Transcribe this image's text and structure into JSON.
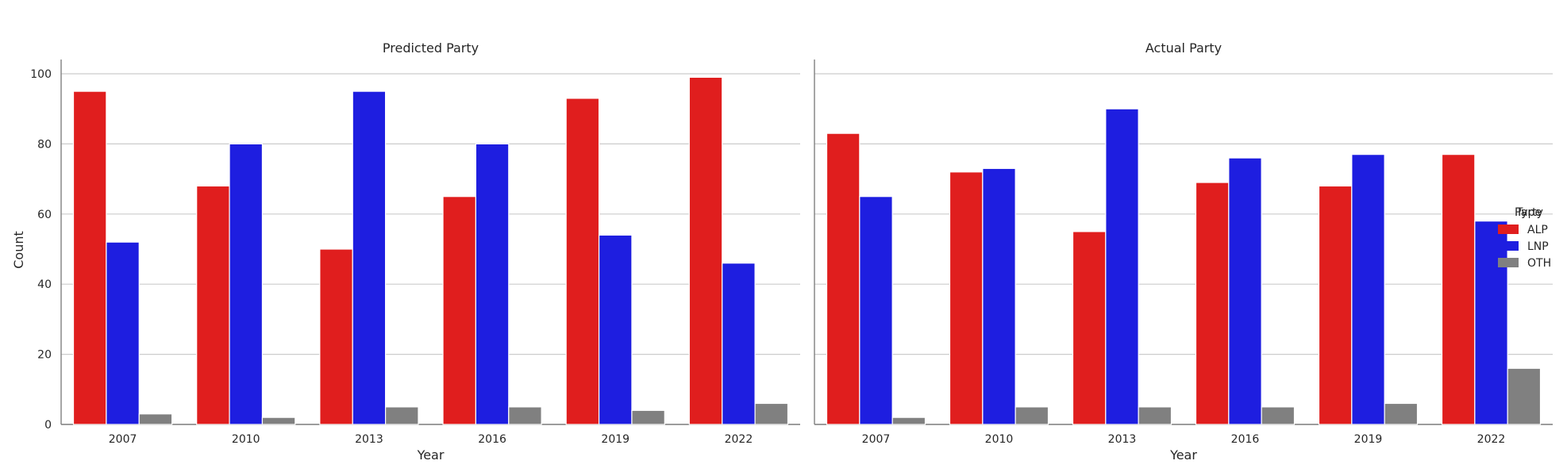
{
  "chart_data": [
    {
      "type": "bar",
      "title": "Predicted Party",
      "xlabel": "Year",
      "ylabel": "Count",
      "ylim": [
        0,
        100
      ],
      "yticks": [
        0,
        20,
        40,
        60,
        80,
        100
      ],
      "grid": "horizontal",
      "categories": [
        "2007",
        "2010",
        "2013",
        "2016",
        "2019",
        "2022"
      ],
      "series": [
        {
          "name": "ALP",
          "color": "#e01e1e",
          "values": [
            95,
            68,
            50,
            65,
            93,
            99
          ]
        },
        {
          "name": "LNP",
          "color": "#1e1ee0",
          "values": [
            52,
            80,
            95,
            80,
            54,
            46
          ]
        },
        {
          "name": "OTH",
          "color": "#808080",
          "values": [
            3,
            2,
            5,
            5,
            4,
            6
          ]
        }
      ]
    },
    {
      "type": "bar",
      "title": "Actual Party",
      "xlabel": "Year",
      "ylabel": "",
      "ylim": [
        0,
        100
      ],
      "yticks": [
        0,
        20,
        40,
        60,
        80,
        100
      ],
      "grid": "horizontal",
      "categories": [
        "2007",
        "2010",
        "2013",
        "2016",
        "2019",
        "2022"
      ],
      "series": [
        {
          "name": "ALP",
          "color": "#e01e1e",
          "values": [
            83,
            72,
            55,
            69,
            68,
            77
          ]
        },
        {
          "name": "LNP",
          "color": "#1e1ee0",
          "values": [
            65,
            73,
            90,
            76,
            77,
            58
          ]
        },
        {
          "name": "OTH",
          "color": "#808080",
          "values": [
            2,
            5,
            5,
            5,
            6,
            16
          ]
        }
      ]
    }
  ],
  "legend": {
    "title_a": "Party",
    "title_b": "Type",
    "placement": "right",
    "entries": [
      {
        "label": "ALP",
        "color": "#e01e1e"
      },
      {
        "label": "LNP",
        "color": "#1e1ee0"
      },
      {
        "label": "OTH",
        "color": "#808080"
      }
    ]
  }
}
